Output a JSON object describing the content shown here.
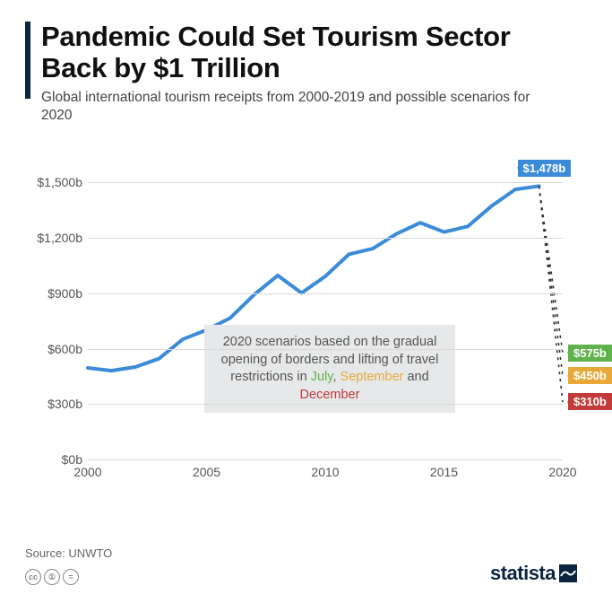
{
  "accent_color": "#0a2540",
  "title_color": "#101010",
  "title": "Pandemic Could Set Tourism Sector Back by $1 Trillion",
  "subtitle": "Global international tourism receipts from 2000-2019 and possible scenarios for 2020",
  "chart": {
    "type": "line",
    "background_color": "#ffffff",
    "grid_color": "#dadada",
    "x": {
      "min": 2000,
      "max": 2020,
      "ticks": [
        2000,
        2005,
        2010,
        2015,
        2020
      ]
    },
    "y": {
      "min": 0,
      "max": 1650,
      "ticks": [
        0,
        300,
        600,
        900,
        1200,
        1500
      ],
      "tick_labels": [
        "$0b",
        "$300b",
        "$600b",
        "$900b",
        "$1,200b",
        "$1,500b"
      ]
    },
    "historical": {
      "color": "#3b8bd8",
      "width": 4,
      "years": [
        2000,
        2001,
        2002,
        2003,
        2004,
        2005,
        2006,
        2007,
        2008,
        2009,
        2010,
        2011,
        2012,
        2013,
        2014,
        2015,
        2016,
        2017,
        2018,
        2019
      ],
      "values": [
        495,
        480,
        500,
        545,
        650,
        700,
        765,
        890,
        995,
        900,
        990,
        1110,
        1140,
        1220,
        1280,
        1230,
        1260,
        1370,
        1460,
        1478
      ]
    },
    "end_label_2019": {
      "text": "$1,478b",
      "bg": "#3b8bd8"
    },
    "scenarios": {
      "line_color": "#333333",
      "dash": "3,5",
      "width": 1.6,
      "items": [
        {
          "name": "July",
          "value": 575,
          "label": "$575b",
          "color": "#60b24c"
        },
        {
          "name": "September",
          "value": 450,
          "label": "$450b",
          "color": "#e8a93a"
        },
        {
          "name": "December",
          "value": 310,
          "label": "$310b",
          "color": "#c23b3b"
        }
      ]
    },
    "scenario_box": {
      "bg": "#e7e8e9",
      "prefix": "2020 scenarios based on the gradual opening of borders and lifting of travel restrictions in ",
      "months": [
        {
          "text": "July",
          "color": "#60b24c"
        },
        {
          "text": "September",
          "color": "#e8a93a"
        },
        {
          "text": "December",
          "color": "#c23b3b"
        }
      ],
      "sep1": ", ",
      "sep2": " and "
    }
  },
  "source_label": "Source: UNWTO",
  "cc": {
    "a": "cc",
    "b": "①",
    "c": "="
  },
  "logo_text": "statista",
  "logo_color": "#0a2540",
  "logo_underline": "✓"
}
